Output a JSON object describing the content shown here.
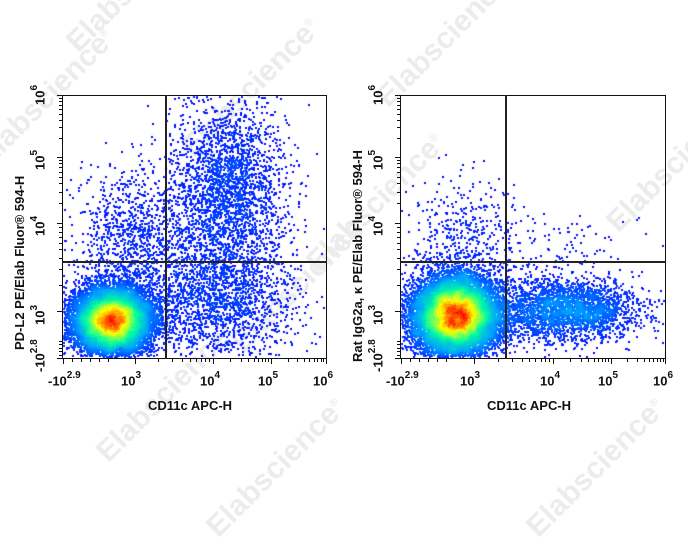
{
  "watermark": {
    "text": "Elabscience",
    "mark": "®",
    "color": "#ececec"
  },
  "chart_data": [
    {
      "type": "scatter",
      "subtype": "flow-cytometry-density-dot-plot",
      "panel": "left",
      "title": "",
      "xlabel": "CD11c APC-H",
      "ylabel": "PD-L2 PE/Elab Fluor® 594-H",
      "x_scale": "biexponential",
      "y_scale": "biexponential",
      "x_ticks": [
        "-10^2.9",
        "10^3",
        "10^4",
        "10^5",
        "10^6"
      ],
      "y_ticks": [
        "-10^2.8",
        "10^3",
        "10^4",
        "10^5",
        "10^6"
      ],
      "xlim": [
        "-10^2.9",
        "10^6"
      ],
      "ylim": [
        "-10^2.8",
        "10^6"
      ],
      "quadrant_gate": {
        "x": 2500,
        "y": 2500
      },
      "populations": [
        {
          "name": "main CD11c- PD-L2- cluster",
          "center": {
            "x": 600,
            "y": 800
          },
          "density": "high (red core)"
        },
        {
          "name": "CD11c+ PD-L2+ cluster",
          "center": {
            "x": 25000,
            "y": 15000
          },
          "density": "low-medium (blue)"
        },
        {
          "name": "CD11c+ PD-L2- scatter",
          "center": {
            "x": 8000,
            "y": 1200
          },
          "density": "low (blue)"
        },
        {
          "name": "CD11c- PD-L2+ scatter",
          "center": {
            "x": 600,
            "y": 5000
          },
          "density": "low (blue)"
        }
      ],
      "color_scale": [
        "#0000ff",
        "#00a0ff",
        "#00ffa0",
        "#ffff00",
        "#ff0000"
      ],
      "grid": false,
      "legend": "none"
    },
    {
      "type": "scatter",
      "subtype": "flow-cytometry-density-dot-plot",
      "panel": "right",
      "title": "",
      "xlabel": "CD11c APC-H",
      "ylabel": "Rat IgG2a, κ PE/Elab Fluor® 594-H",
      "x_scale": "biexponential",
      "y_scale": "biexponential",
      "x_ticks": [
        "-10^2.9",
        "10^3",
        "10^4",
        "10^5",
        "10^6"
      ],
      "y_ticks": [
        "-10^2.8",
        "10^3",
        "10^4",
        "10^5",
        "10^6"
      ],
      "xlim": [
        "-10^2.9",
        "10^6"
      ],
      "ylim": [
        "-10^2.8",
        "10^6"
      ],
      "quadrant_gate": {
        "x": 2500,
        "y": 2500
      },
      "populations": [
        {
          "name": "main CD11c- isotype- cluster",
          "center": {
            "x": 500,
            "y": 900
          },
          "density": "high (red core)"
        },
        {
          "name": "CD11c+ isotype- cluster",
          "center": {
            "x": 20000,
            "y": 1000
          },
          "density": "medium (blue)"
        },
        {
          "name": "sparse upper events",
          "center": {
            "x": 1000,
            "y": 8000
          },
          "density": "very low"
        }
      ],
      "color_scale": [
        "#0000ff",
        "#00a0ff",
        "#00ffa0",
        "#ffff00",
        "#ff0000"
      ],
      "grid": false,
      "legend": "none"
    }
  ],
  "panels": [
    {
      "ylabel": "PD-L2 PE/Elab Fluor® 594-H",
      "xlabel": "CD11c APC-H",
      "xticks": [
        {
          "base": "-10",
          "exp": "2.9"
        },
        {
          "base": "10",
          "exp": "3"
        },
        {
          "base": "10",
          "exp": "4"
        },
        {
          "base": "10",
          "exp": "5"
        },
        {
          "base": "10",
          "exp": "6"
        }
      ],
      "yticks": [
        {
          "base": "-10",
          "exp": "2.8"
        },
        {
          "base": "10",
          "exp": "3"
        },
        {
          "base": "10",
          "exp": "4"
        },
        {
          "base": "10",
          "exp": "5"
        },
        {
          "base": "10",
          "exp": "6"
        }
      ]
    },
    {
      "ylabel": "Rat IgG2a, κ PE/Elab Fluor® 594-H",
      "xlabel": "CD11c APC-H",
      "xticks": [
        {
          "base": "-10",
          "exp": "2.9"
        },
        {
          "base": "10",
          "exp": "3"
        },
        {
          "base": "10",
          "exp": "4"
        },
        {
          "base": "10",
          "exp": "5"
        },
        {
          "base": "10",
          "exp": "6"
        }
      ],
      "yticks": [
        {
          "base": "-10",
          "exp": "2.8"
        },
        {
          "base": "10",
          "exp": "3"
        },
        {
          "base": "10",
          "exp": "4"
        },
        {
          "base": "10",
          "exp": "5"
        },
        {
          "base": "10",
          "exp": "6"
        }
      ]
    }
  ]
}
